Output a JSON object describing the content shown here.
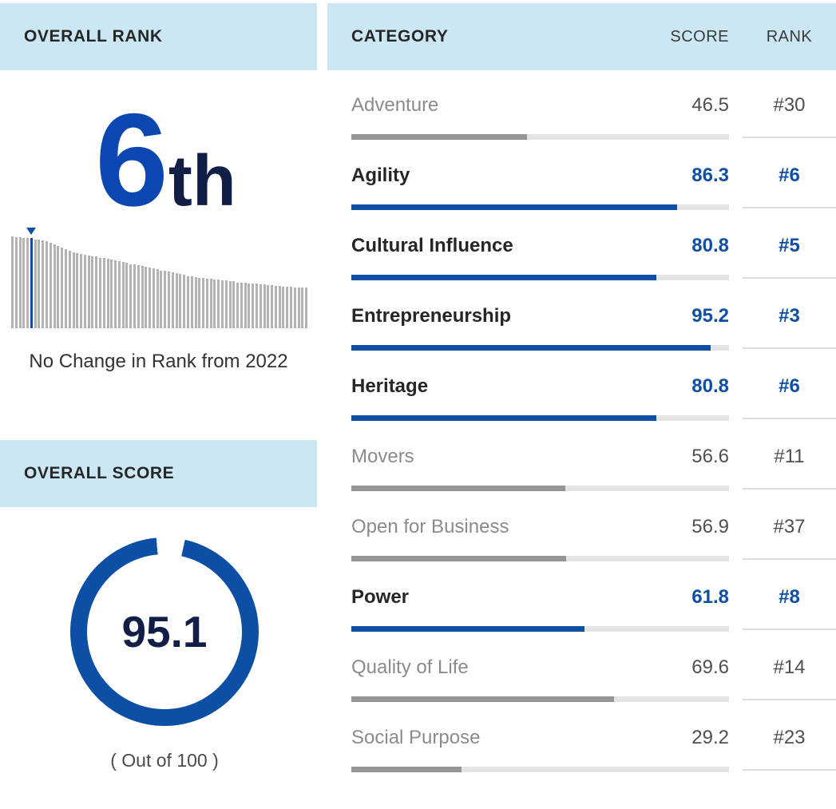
{
  "colors": {
    "accent_blue": "#0d4fa4",
    "rank_big_blue": "#0b46b1",
    "dark_navy": "#111e46",
    "light_blue_header_bg": "#cbe7f4",
    "gray_bar_fill": "#969696",
    "track_gray": "#e4e4e4",
    "muted_text": "#8b8b8b"
  },
  "overall_rank": {
    "header": "OVERALL RANK",
    "rank_number": "6",
    "rank_suffix": "th",
    "change_note": "No Change in Rank from 2022"
  },
  "overall_score": {
    "header": "OVERALL SCORE",
    "score": "95.1",
    "score_value": 95.1,
    "max": 100,
    "out_of_label": "( Out of 100 )"
  },
  "category_table": {
    "headers": {
      "category": "CATEGORY",
      "score": "SCORE",
      "rank": "RANK"
    },
    "rows": [
      {
        "category": "Adventure",
        "score": "46.5",
        "rank": "#30",
        "highlighted": false
      },
      {
        "category": "Agility",
        "score": "86.3",
        "rank": "#6",
        "highlighted": true
      },
      {
        "category": "Cultural Influence",
        "score": "80.8",
        "rank": "#5",
        "highlighted": true
      },
      {
        "category": "Entrepreneurship",
        "score": "95.2",
        "rank": "#3",
        "highlighted": true
      },
      {
        "category": "Heritage",
        "score": "80.8",
        "rank": "#6",
        "highlighted": true
      },
      {
        "category": "Movers",
        "score": "56.6",
        "rank": "#11",
        "highlighted": false
      },
      {
        "category": "Open for Business",
        "score": "56.9",
        "rank": "#37",
        "highlighted": false
      },
      {
        "category": "Power",
        "score": "61.8",
        "rank": "#8",
        "highlighted": true
      },
      {
        "category": "Quality of Life",
        "score": "69.6",
        "rank": "#14",
        "highlighted": false
      },
      {
        "category": "Social Purpose",
        "score": "29.2",
        "rank": "#23",
        "highlighted": false
      }
    ]
  },
  "chart_data": [
    {
      "type": "bar",
      "title": "Overall rank distribution (country highlighted at rank 6)",
      "highlight_index": 5,
      "units": "relative height, estimated 0-100",
      "values": [
        100,
        99,
        99,
        98,
        98,
        98,
        97,
        97,
        96,
        95,
        93,
        91,
        90,
        88,
        86,
        84,
        83,
        82,
        81,
        80,
        79,
        78,
        78,
        77,
        77,
        76,
        75,
        74,
        73,
        72,
        71,
        70,
        70,
        69,
        68,
        67,
        66,
        65,
        64,
        63,
        63,
        62,
        61,
        60,
        59,
        58,
        57,
        57,
        56,
        55,
        55,
        54,
        54,
        53,
        53,
        52,
        52,
        51,
        51,
        50,
        50,
        50,
        49,
        49,
        49,
        48,
        48,
        47,
        47,
        46,
        46,
        45,
        45,
        45,
        44,
        44,
        44,
        44
      ],
      "legend": false,
      "grid": false
    },
    {
      "type": "donut",
      "title": "Overall score",
      "labels": [
        "Score",
        "Remainder"
      ],
      "values": [
        95.1,
        4.9
      ],
      "center_label": "95.1",
      "max": 100
    },
    {
      "type": "bar",
      "title": "Category scores",
      "categories": [
        "Adventure",
        "Agility",
        "Cultural Influence",
        "Entrepreneurship",
        "Heritage",
        "Movers",
        "Open for Business",
        "Power",
        "Quality of Life",
        "Social Purpose"
      ],
      "values": [
        46.5,
        86.3,
        80.8,
        95.2,
        80.8,
        56.6,
        56.9,
        61.8,
        69.6,
        29.2
      ],
      "ranks": [
        "#30",
        "#6",
        "#5",
        "#3",
        "#6",
        "#11",
        "#37",
        "#8",
        "#14",
        "#23"
      ],
      "xlim": [
        0,
        100
      ],
      "grid": false,
      "legend": false
    }
  ]
}
